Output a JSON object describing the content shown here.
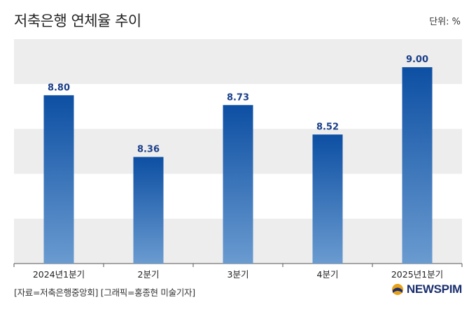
{
  "header": {
    "title": "저축은행 연체율 추이",
    "unit": "단위: %"
  },
  "footer": {
    "source": "[자료=저축은행중앙회] [그래픽=홍종현 미술기자]",
    "logo": "NEWSPIM"
  },
  "colors": {
    "bar_top": "#0d4fa3",
    "bar_bottom": "#6a9bd0",
    "label": "#1a3f8a",
    "band": "#ededed"
  },
  "chart_data": {
    "type": "bar",
    "title": "저축은행 연체율 추이",
    "categories": [
      "2024년1분기",
      "2분기",
      "3분기",
      "4분기",
      "2025년1분기"
    ],
    "values": [
      8.8,
      8.36,
      8.73,
      8.52,
      9.0
    ],
    "value_labels": [
      "8.80",
      "8.36",
      "8.73",
      "8.52",
      "9.00"
    ],
    "xlabel": "",
    "ylabel": "",
    "ylim": [
      7.6,
      9.2
    ],
    "grid": "alternating horizontal bands",
    "legend": "none"
  }
}
